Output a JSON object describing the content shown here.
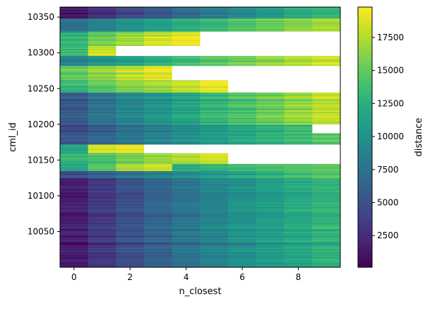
{
  "chart_data": {
    "type": "heatmap",
    "title": "",
    "xlabel": "n_closest",
    "ylabel": "cml_id",
    "colorbar_label": "distance",
    "colormap": "viridis",
    "x_values": [
      0,
      1,
      2,
      3,
      4,
      5,
      6,
      7,
      8,
      9
    ],
    "x_ticks": [
      "0",
      "2",
      "4",
      "6",
      "8"
    ],
    "y_ticks": [
      "10050",
      "10100",
      "10150",
      "10200",
      "10250",
      "10300",
      "10350"
    ],
    "y_range": [
      10000,
      10364
    ],
    "colorbar_ticks": [
      "2500",
      "5000",
      "7500",
      "10000",
      "12500",
      "15000",
      "17500"
    ],
    "color_range": [
      100,
      19800
    ],
    "missing_color": "#ffffff",
    "band_profiles": [
      {
        "y_from": 10000,
        "y_to": 10125,
        "distances": [
          1500,
          3200,
          4800,
          6200,
          7500,
          8700,
          9800,
          10800,
          11700,
          12600
        ]
      },
      {
        "y_from": 10125,
        "y_to": 10135,
        "distances": [
          4500,
          6000,
          7200,
          8400,
          9500,
          10500,
          11500,
          12500,
          13600,
          14500
        ]
      },
      {
        "y_from": 10135,
        "y_to": 10145,
        "distances": [
          12000,
          14500,
          17500,
          18500,
          12500,
          13000,
          13500,
          14000,
          14500,
          15000
        ]
      },
      {
        "y_from": 10145,
        "y_to": 10160,
        "distances": [
          13000,
          14000,
          15500,
          16500,
          17500,
          18500,
          null,
          null,
          null,
          null
        ]
      },
      {
        "y_from": 10160,
        "y_to": 10172,
        "distances": [
          11500,
          18500,
          19500,
          null,
          null,
          null,
          null,
          null,
          null,
          null
        ]
      },
      {
        "y_from": 10172,
        "y_to": 10188,
        "distances": [
          5200,
          6500,
          7600,
          8600,
          9600,
          10600,
          11500,
          12400,
          13300,
          14200
        ]
      },
      {
        "y_from": 10188,
        "y_to": 10200,
        "distances": [
          4200,
          5600,
          7000,
          8200,
          9300,
          10300,
          11300,
          12400,
          13400,
          null
        ]
      },
      {
        "y_from": 10200,
        "y_to": 10245,
        "distances": [
          5500,
          7500,
          9000,
          10200,
          11500,
          12800,
          14000,
          15200,
          16500,
          17800
        ]
      },
      {
        "y_from": 10245,
        "y_to": 10262,
        "distances": [
          13000,
          14500,
          15800,
          16800,
          17800,
          19000,
          null,
          null,
          null,
          null
        ]
      },
      {
        "y_from": 10262,
        "y_to": 10282,
        "distances": [
          15000,
          16500,
          17800,
          19000,
          null,
          null,
          null,
          null,
          null,
          null
        ]
      },
      {
        "y_from": 10282,
        "y_to": 10296,
        "distances": [
          8500,
          10000,
          11200,
          12300,
          13300,
          14300,
          15200,
          16200,
          17200,
          18200
        ]
      },
      {
        "y_from": 10296,
        "y_to": 10310,
        "distances": [
          13500,
          18500,
          null,
          null,
          null,
          null,
          null,
          null,
          null,
          null
        ]
      },
      {
        "y_from": 10310,
        "y_to": 10330,
        "distances": [
          13000,
          15500,
          17000,
          18500,
          19500,
          null,
          null,
          null,
          null,
          null
        ]
      },
      {
        "y_from": 10330,
        "y_to": 10348,
        "distances": [
          7500,
          9000,
          10200,
          11300,
          12300,
          13300,
          14300,
          15300,
          16300,
          17300
        ]
      },
      {
        "y_from": 10348,
        "y_to": 10364,
        "distances": [
          1200,
          2800,
          4200,
          5600,
          7000,
          8300,
          9500,
          10700,
          11900,
          13000
        ]
      }
    ]
  }
}
